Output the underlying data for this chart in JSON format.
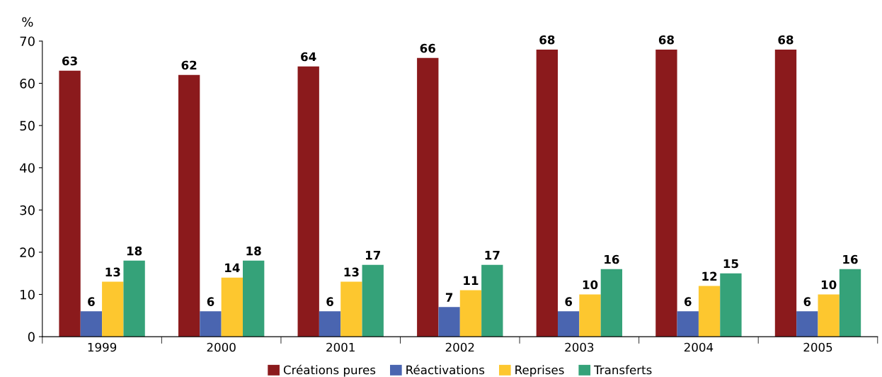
{
  "chart_data": {
    "type": "bar",
    "ylabel": "%",
    "categories": [
      "1999",
      "2000",
      "2001",
      "2002",
      "2003",
      "2004",
      "2005"
    ],
    "series": [
      {
        "name": "Créations pures",
        "color": "#8b1a1c",
        "values": [
          63,
          62,
          64,
          66,
          68,
          68,
          68
        ]
      },
      {
        "name": "Réactivations",
        "color": "#4a65b0",
        "values": [
          6,
          6,
          6,
          7,
          6,
          6,
          6
        ]
      },
      {
        "name": "Reprises",
        "color": "#fdc72f",
        "values": [
          13,
          14,
          13,
          11,
          10,
          12,
          10
        ]
      },
      {
        "name": "Transferts",
        "color": "#35a279",
        "values": [
          18,
          18,
          17,
          17,
          16,
          15,
          16
        ]
      }
    ],
    "ylim": [
      0,
      70
    ],
    "yticks": [
      0,
      10,
      20,
      30,
      40,
      50,
      60,
      70
    ],
    "data_labels": true,
    "legend": "bottom",
    "grid": false
  }
}
